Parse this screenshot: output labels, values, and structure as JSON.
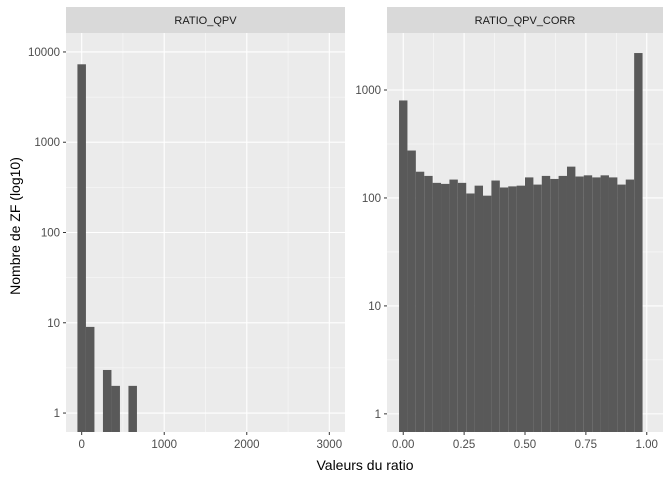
{
  "chart_data": {
    "type": "bar",
    "xlabel": "Valeurs du ratio",
    "ylabel": "Nombre de ZF (log10)",
    "y_scale": "log10",
    "grid": true,
    "panels": [
      {
        "title": "RATIO_QPV",
        "xlim": [
          -190,
          3190
        ],
        "ylim_log10": [
          -0.21,
          4.21
        ],
        "x_ticks": [
          0,
          1000,
          2000,
          3000
        ],
        "x_tick_labels": [
          "0",
          "1000",
          "2000",
          "3000"
        ],
        "y_ticks": [
          1,
          10,
          100,
          1000,
          10000
        ],
        "y_tick_labels": [
          "1",
          "10",
          "100",
          "1000",
          "10000"
        ],
        "bin_width": 103,
        "bins": [
          {
            "x": 0,
            "count": 7300
          },
          {
            "x": 103,
            "count": 9
          },
          {
            "x": 309,
            "count": 3
          },
          {
            "x": 412,
            "count": 2
          },
          {
            "x": 618,
            "count": 2
          }
        ]
      },
      {
        "title": "RATIO_QPV_CORR",
        "xlim": [
          -0.0667,
          1.0667
        ],
        "ylim_log10": [
          -0.168,
          3.528
        ],
        "x_ticks": [
          0,
          0.25,
          0.5,
          0.75,
          1
        ],
        "x_tick_labels": [
          "0.00",
          "0.25",
          "0.50",
          "0.75",
          "1.00"
        ],
        "y_ticks": [
          1,
          10,
          100,
          1000
        ],
        "y_tick_labels": [
          "1",
          "10",
          "100",
          "1000"
        ],
        "bin_width": 0.03448,
        "bins": [
          {
            "x": 0.0,
            "count": 800
          },
          {
            "x": 0.0345,
            "count": 275
          },
          {
            "x": 0.069,
            "count": 175
          },
          {
            "x": 0.1034,
            "count": 160
          },
          {
            "x": 0.1379,
            "count": 138
          },
          {
            "x": 0.1724,
            "count": 135
          },
          {
            "x": 0.2069,
            "count": 148
          },
          {
            "x": 0.2414,
            "count": 138
          },
          {
            "x": 0.2759,
            "count": 110
          },
          {
            "x": 0.3103,
            "count": 130
          },
          {
            "x": 0.3448,
            "count": 105
          },
          {
            "x": 0.3793,
            "count": 145
          },
          {
            "x": 0.4138,
            "count": 125
          },
          {
            "x": 0.4483,
            "count": 128
          },
          {
            "x": 0.4828,
            "count": 130
          },
          {
            "x": 0.5172,
            "count": 155
          },
          {
            "x": 0.5517,
            "count": 133
          },
          {
            "x": 0.5862,
            "count": 160
          },
          {
            "x": 0.6207,
            "count": 150
          },
          {
            "x": 0.6552,
            "count": 160
          },
          {
            "x": 0.6897,
            "count": 195
          },
          {
            "x": 0.7241,
            "count": 158
          },
          {
            "x": 0.7586,
            "count": 162
          },
          {
            "x": 0.7931,
            "count": 155
          },
          {
            "x": 0.8276,
            "count": 162
          },
          {
            "x": 0.8621,
            "count": 155
          },
          {
            "x": 0.8966,
            "count": 133
          },
          {
            "x": 0.931,
            "count": 148
          },
          {
            "x": 0.9655,
            "count": 2200
          }
        ]
      }
    ]
  },
  "colors": {
    "panel_bg": "#EBEBEB",
    "strip_bg": "#D9D9D9",
    "grid_major": "#FFFFFF",
    "bar_fill": "#595959",
    "tick_text": "#4D4D4D",
    "tick_mark": "#333333",
    "title_text": "#000000"
  }
}
